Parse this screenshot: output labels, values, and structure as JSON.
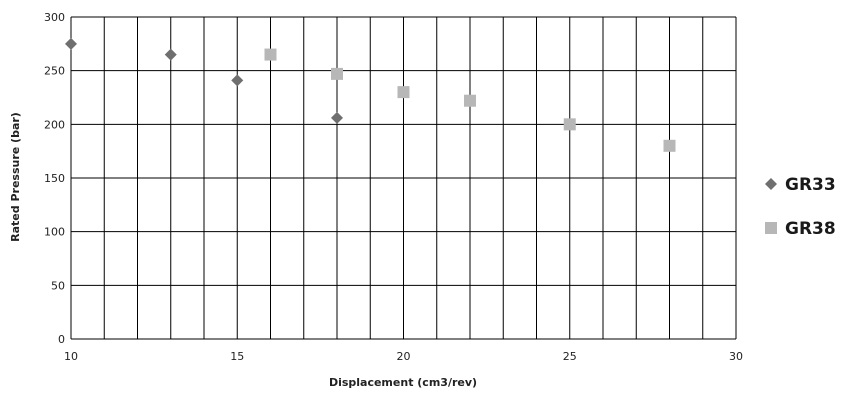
{
  "chart_data": {
    "type": "scatter",
    "title": "",
    "xlabel": "Displacement (cm3/rev)",
    "ylabel": "Rated Pressure (bar)",
    "xlim": [
      10,
      30
    ],
    "ylim": [
      0,
      300
    ],
    "x_ticks": [
      "10",
      "15",
      "20",
      "25",
      "30"
    ],
    "y_ticks": [
      "0",
      "50",
      "100",
      "150",
      "200",
      "250",
      "300"
    ],
    "grid": true,
    "legend_position": "right",
    "series": [
      {
        "name": "GR33",
        "marker": "diamond",
        "color": "#6f6f6f",
        "points": [
          {
            "x": 10,
            "y": 275
          },
          {
            "x": 13,
            "y": 265
          },
          {
            "x": 15,
            "y": 241
          },
          {
            "x": 18,
            "y": 206
          }
        ]
      },
      {
        "name": "GR38",
        "marker": "square",
        "color": "#b7b7b7",
        "points": [
          {
            "x": 16,
            "y": 265
          },
          {
            "x": 18,
            "y": 247
          },
          {
            "x": 20,
            "y": 230
          },
          {
            "x": 22,
            "y": 222
          },
          {
            "x": 25,
            "y": 200
          },
          {
            "x": 28,
            "y": 180
          }
        ]
      }
    ]
  }
}
